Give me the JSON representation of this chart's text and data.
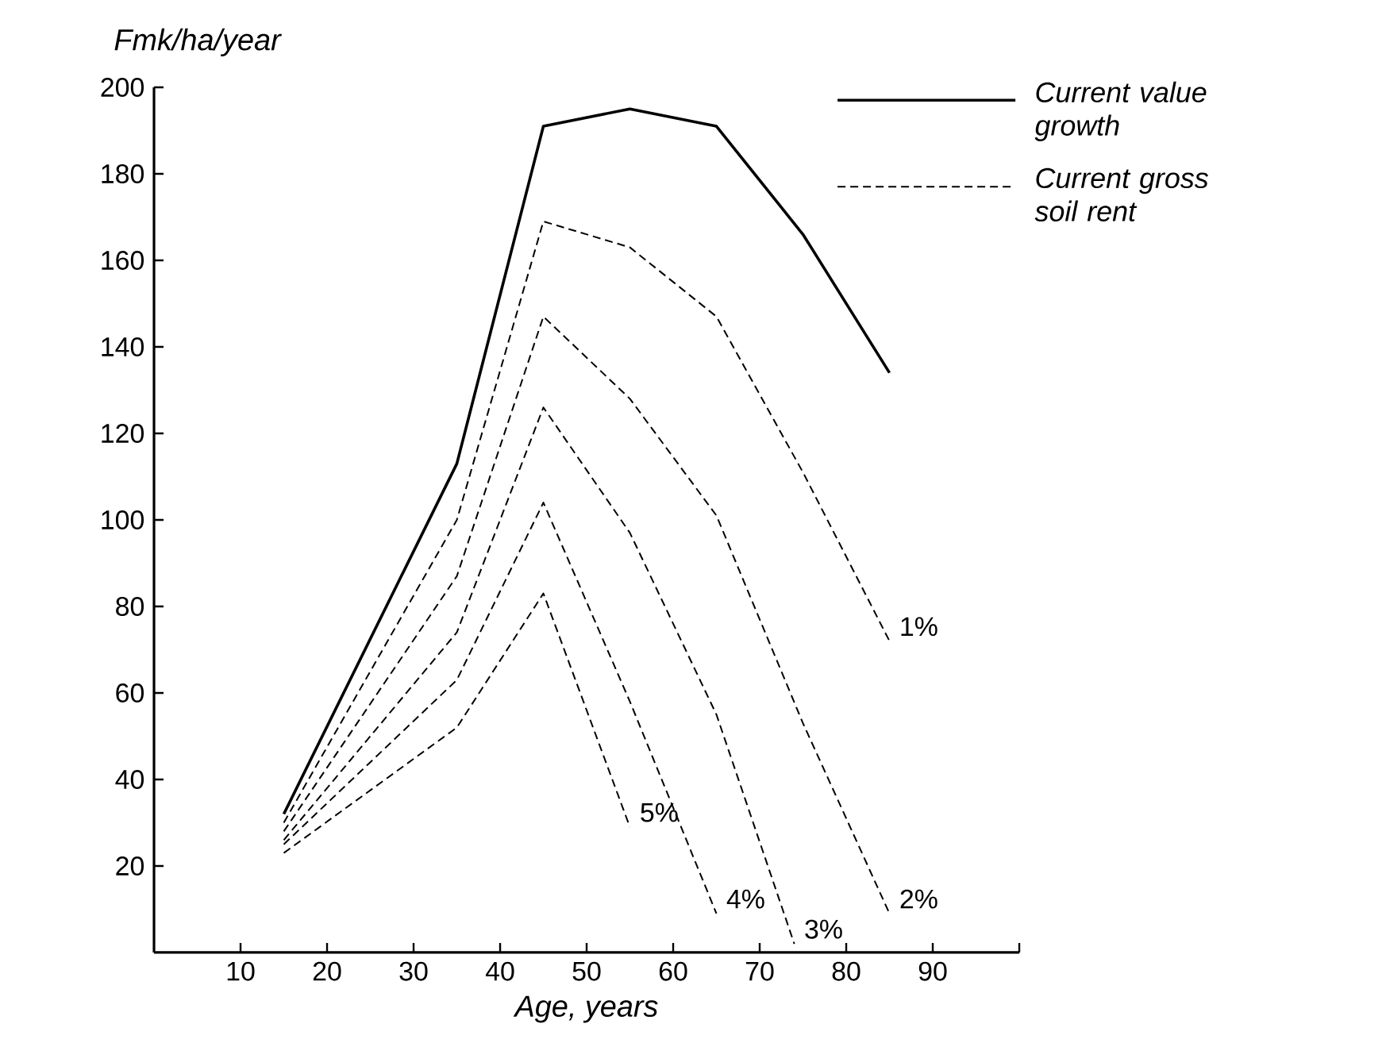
{
  "chart_data": {
    "type": "line",
    "xlabel": "Age, years",
    "ylabel": "Fmk/ha/year",
    "xlim": [
      0,
      100
    ],
    "ylim": [
      0,
      200
    ],
    "xticks": [
      10,
      20,
      30,
      40,
      50,
      60,
      70,
      80,
      90,
      {
        "value": 100,
        "label": null
      }
    ],
    "yticks": [
      20,
      40,
      60,
      80,
      100,
      120,
      140,
      160,
      180,
      200
    ],
    "grid": false,
    "legend": "top right",
    "marker": "none",
    "series": [
      {
        "name": "Current value growth",
        "color": "#000000",
        "line_style": "solid",
        "x": [
          15,
          35,
          45,
          55,
          65,
          75,
          85
        ],
        "values": [
          32,
          113,
          191,
          195,
          191,
          166,
          134
        ]
      },
      {
        "name": "Current gross soil rent",
        "color": "#000000",
        "line_style": "dashed",
        "x": [
          15,
          35,
          45,
          55,
          65,
          75,
          85
        ],
        "values": [
          30,
          100,
          169,
          163,
          147,
          111,
          72
        ]
      },
      {
        "color": "#000000",
        "line_style": "dashed",
        "x": [
          15,
          35,
          45,
          55,
          65,
          75,
          85
        ],
        "values": [
          28,
          87,
          147,
          128,
          101,
          53,
          9
        ]
      },
      {
        "color": "#000000",
        "line_style": "dashed",
        "x": [
          15,
          35,
          45,
          55,
          65,
          74
        ],
        "values": [
          26,
          74,
          126,
          97,
          55,
          2
        ]
      },
      {
        "color": "#000000",
        "line_style": "dashed",
        "x": [
          15,
          35,
          45,
          55,
          65
        ],
        "values": [
          25,
          63,
          104,
          58,
          9
        ]
      },
      {
        "color": "#000000",
        "line_style": "dashed",
        "x": [
          15,
          35,
          45,
          55
        ],
        "values": [
          23,
          52,
          83,
          29
        ]
      }
    ],
    "annotations": [
      "1%",
      "2%",
      "3%",
      "4%",
      "5%"
    ]
  }
}
